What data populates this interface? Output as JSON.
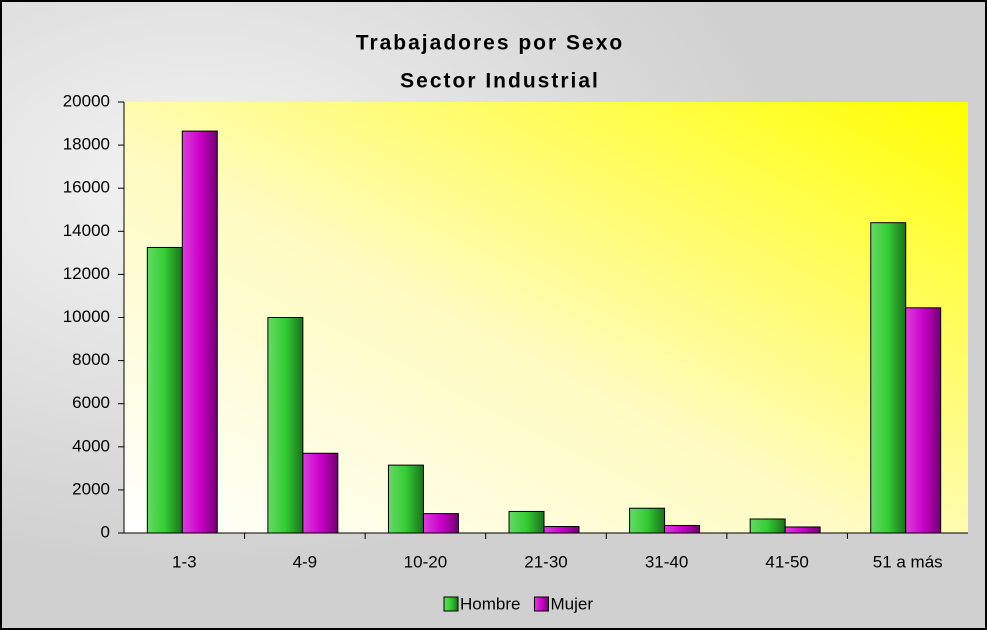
{
  "chart_data": {
    "type": "bar",
    "title": "Trabajadores por Sexo",
    "subtitle": "Sector Industrial",
    "categories": [
      "1-3",
      "4-9",
      "10-20",
      "21-30",
      "31-40",
      "41-50",
      "51 a más"
    ],
    "series": [
      {
        "name": "Hombre",
        "color": "#33cc33",
        "values": [
          13250,
          10000,
          3150,
          1000,
          1150,
          650,
          14400
        ]
      },
      {
        "name": "Mujer",
        "color": "#cc00cc",
        "values": [
          18650,
          3700,
          900,
          300,
          350,
          280,
          10450
        ]
      }
    ],
    "ylim": [
      0,
      20000
    ],
    "yticks": [
      0,
      2000,
      4000,
      6000,
      8000,
      10000,
      12000,
      14000,
      16000,
      18000,
      20000
    ],
    "legend": "bottom"
  }
}
